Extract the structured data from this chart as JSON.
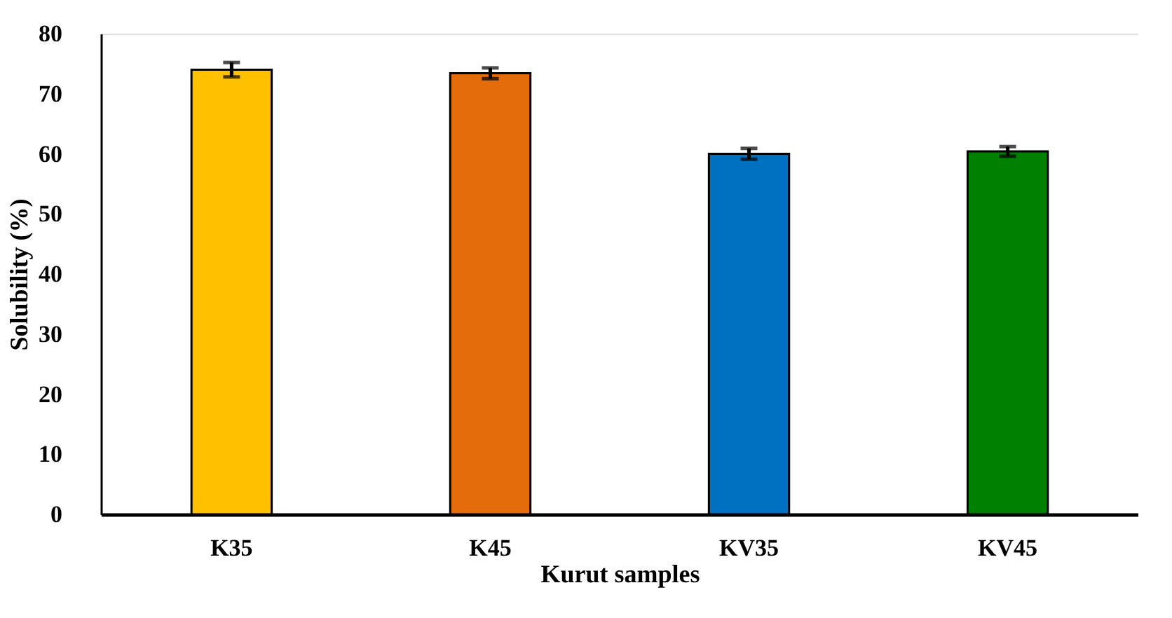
{
  "chart_data": {
    "type": "bar",
    "xlabel": "Kurut samples",
    "ylabel": "Solubility (%)",
    "categories": [
      "K35",
      "K45",
      "KV35",
      "KV45"
    ],
    "values": [
      74.0,
      73.4,
      60.0,
      60.4
    ],
    "colors": [
      "#ffc000",
      "#e46c0a",
      "#0070c0",
      "#008000"
    ],
    "errors": [
      1.2,
      0.9,
      0.9,
      0.8
    ],
    "ylim": [
      0,
      80
    ],
    "yticks": [
      0,
      10,
      20,
      30,
      40,
      50,
      60,
      70,
      80
    ],
    "grid": false
  }
}
